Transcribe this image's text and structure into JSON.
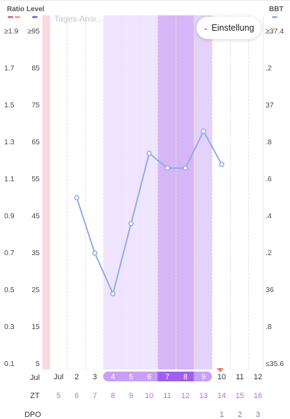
{
  "header": {
    "ratio_label": "Ratio",
    "level_label": "Level",
    "bbt_label": "BBT",
    "ghost_title": "Tages-Ansi..."
  },
  "colors": {
    "ratio_swatch": "#e1727a",
    "ratio_swatch2": "#eea7a2",
    "level_swatch": "#8c76d8",
    "bbt_swatch": "#9fb5e6",
    "line": "#93aae6",
    "band_light": "#efe5ff",
    "band_mid": "#e4d2fb",
    "band_dark": "#d7b6f8",
    "pink_strip": "#fbd9dd",
    "pill_light": "#c7a0f6",
    "pill_dark": "#a15ff0",
    "zt_color": "#b06fe6",
    "dpo_color": "#7d6fd8",
    "marker": "#ea7b6d"
  },
  "settings_button": {
    "label": "Einstellung",
    "icon": "chevron-down-icon"
  },
  "y_axis_left_ratio": [
    "≥1.9",
    "1.7",
    "1.5",
    "1.3",
    "1.1",
    "0.9",
    "0.7",
    "0.5",
    "0.3",
    "0.1"
  ],
  "y_axis_left_level": [
    "≥95",
    "85",
    "75",
    "65",
    "55",
    "45",
    "35",
    "25",
    "15",
    "5"
  ],
  "y_axis_right_bbt": [
    "≥37.4",
    ".2",
    "37",
    ".8",
    ".6",
    ".4",
    ".2",
    "36",
    ".8",
    "≤35.6"
  ],
  "bottom_rows": {
    "jul_label": "Jul",
    "zt_label": "ZT",
    "dpo_label": "DPO",
    "dates": [
      "Jul",
      "2",
      "3",
      "4",
      "5",
      "6",
      "7",
      "8",
      "9",
      "10",
      "11",
      "12"
    ],
    "zt": [
      "5",
      "6",
      "7",
      "8",
      "9",
      "10",
      "11",
      "12",
      "13",
      "14",
      "15",
      "16"
    ],
    "dpo": [
      "",
      "",
      "",
      "",
      "",
      "",
      "",
      "",
      "",
      "1",
      "2",
      "3"
    ]
  },
  "chart_data": {
    "type": "line",
    "title": "",
    "xlabel": "",
    "ylabel": "Level",
    "ylim": [
      5,
      95
    ],
    "x": [
      "2",
      "3",
      "4",
      "5",
      "6",
      "7",
      "8",
      "9",
      "10"
    ],
    "series": [
      {
        "values": [
          50,
          35,
          24,
          43,
          62,
          58,
          58,
          68,
          59
        ]
      }
    ],
    "highlight_ranges": [
      {
        "from": "4",
        "to": "6",
        "level": "light"
      },
      {
        "from": "7",
        "to": "8",
        "level": "dark"
      },
      {
        "from": "9",
        "to": "9",
        "level": "mid"
      }
    ],
    "grid": true,
    "current_day": "10"
  }
}
